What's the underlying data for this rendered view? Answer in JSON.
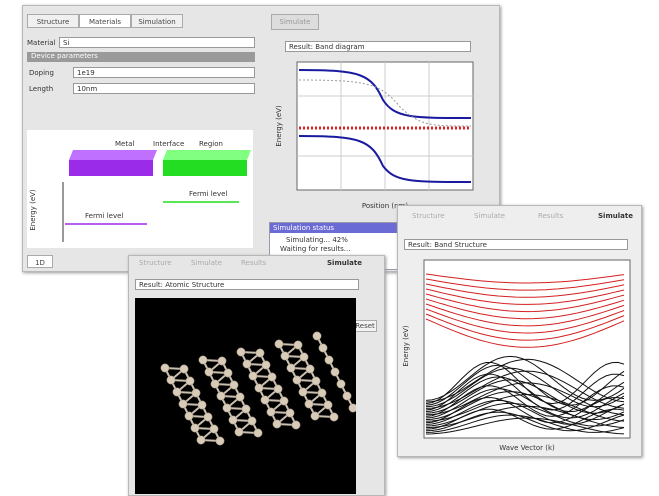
{
  "main_window": {
    "tabs": [
      "Structure",
      "Materials",
      "Simulation"
    ],
    "run_button": "Simulate",
    "material_label": "Material",
    "material_value": "Si",
    "section_header": "Device parameters",
    "fields": [
      {
        "label": "Doping",
        "value": "1e19"
      },
      {
        "label": "Length",
        "value": "10nm"
      }
    ],
    "regions": [
      "Metal",
      "Interface",
      "Region"
    ],
    "left_level": "Fermi level",
    "right_level": "Fermi level",
    "diagram_y_label": "Energy (eV)",
    "footer_tab": "1D",
    "plot_select": "Result: Band diagram",
    "plot_y_label": "Energy (eV)",
    "plot_x_label": "Position (nm)",
    "status_title": "Simulation status",
    "status_lines": [
      "Simulating... 42%",
      "Waiting for results..."
    ]
  },
  "structure_window": {
    "steps": [
      "Structure",
      "Simulate",
      "Results"
    ],
    "run_button": "Simulate",
    "result_select": "Result: Atomic Structure",
    "side_button": "Reset"
  },
  "band_window": {
    "steps": [
      "Structure",
      "Simulate",
      "Results"
    ],
    "run_button": "Simulate",
    "result_select": "Result: Band Structure",
    "y_label": "Energy (eV)",
    "x_label": "Wave Vector (k)"
  }
}
